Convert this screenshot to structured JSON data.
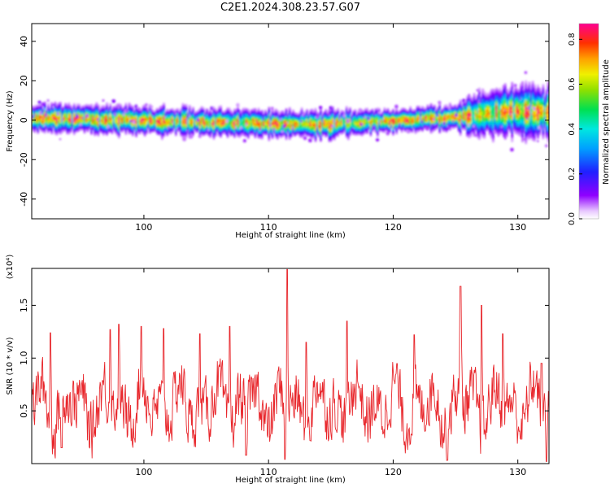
{
  "title": "C2E1.2024.308.23.57.G07",
  "chart_data": [
    {
      "type": "heatmap",
      "xlabel": "Height of straight line (km)",
      "ylabel": "Frequency (Hz)",
      "xlim": [
        91,
        132.5
      ],
      "ylim": [
        -50,
        49
      ],
      "x_ticks": [
        100,
        110,
        120,
        130
      ],
      "y_ticks": [
        -40,
        -20,
        0,
        20,
        40
      ],
      "colorbar": {
        "label": "Normalized spectral amplitude",
        "range": [
          0.0,
          0.87
        ],
        "ticks": [
          0.0,
          0.2,
          0.4,
          0.6,
          0.8
        ]
      },
      "grid": false,
      "ridge_center_hz": [
        [
          91,
          1
        ],
        [
          95,
          1
        ],
        [
          100,
          0
        ],
        [
          105,
          -1
        ],
        [
          110,
          -1.5
        ],
        [
          115,
          -2
        ],
        [
          120,
          0
        ],
        [
          124,
          1
        ],
        [
          127,
          3
        ],
        [
          130,
          5
        ],
        [
          132.5,
          4
        ]
      ],
      "ridge_halfwidth_hz": [
        [
          91,
          5
        ],
        [
          105,
          5
        ],
        [
          115,
          5
        ],
        [
          120,
          4
        ],
        [
          125,
          5
        ],
        [
          127,
          8
        ],
        [
          130,
          10
        ],
        [
          132.5,
          9
        ]
      ]
    },
    {
      "type": "line",
      "xlabel": "Height of straight line (km)",
      "ylabel": "SNR (10 * v/v)",
      "y_multiplier": "(x10⁴)",
      "xlim": [
        91,
        132.5
      ],
      "ylim": [
        0,
        1.85
      ],
      "x_ticks": [
        100,
        110,
        120,
        130
      ],
      "y_ticks": [
        0.5,
        1.0,
        1.5
      ],
      "y_tick_labels": [
        "0.5",
        "1.0",
        "1.5"
      ],
      "series_color": "#e8262b",
      "peaks": [
        [
          92.5,
          1.24
        ],
        [
          97.3,
          1.27
        ],
        [
          98.0,
          1.32
        ],
        [
          99.8,
          1.3
        ],
        [
          101.6,
          1.28
        ],
        [
          104.5,
          1.23
        ],
        [
          106.9,
          1.3
        ],
        [
          111.5,
          1.85
        ],
        [
          113.0,
          1.15
        ],
        [
          116.3,
          1.35
        ],
        [
          121.7,
          1.22
        ],
        [
          125.4,
          1.68
        ],
        [
          127.1,
          1.5
        ],
        [
          128.8,
          1.23
        ],
        [
          131.9,
          0.95
        ]
      ],
      "troughs": [
        [
          93.4,
          0.15
        ],
        [
          108.2,
          0.08
        ],
        [
          111.3,
          0.04
        ],
        [
          124.3,
          0.03
        ],
        [
          132.3,
          0.02
        ]
      ]
    }
  ]
}
